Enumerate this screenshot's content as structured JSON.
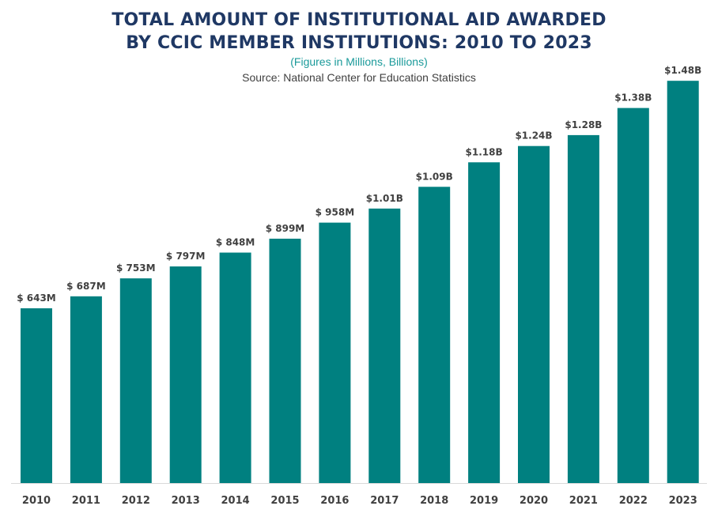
{
  "chart_data": {
    "type": "bar",
    "title_line1": "TOTAL AMOUNT OF INSTITUTIONAL AID AWARDED",
    "title_line2": "BY CCIC MEMBER INSTITUTIONS: 2010 TO 2023",
    "subtitle": "(Figures in Millions, Billions)",
    "source": "Source:  National Center for Education Statistics",
    "categories": [
      "2010",
      "2011",
      "2012",
      "2013",
      "2014",
      "2015",
      "2016",
      "2017",
      "2018",
      "2019",
      "2020",
      "2021",
      "2022",
      "2023"
    ],
    "values": [
      643,
      687,
      753,
      797,
      848,
      899,
      958,
      1010,
      1090,
      1180,
      1240,
      1280,
      1380,
      1480
    ],
    "data_labels": [
      "$ 643M",
      "$ 687M",
      "$ 753M",
      "$ 797M",
      "$ 848M",
      "$ 899M",
      "$ 958M",
      "$1.01B",
      "$1.09B",
      "$1.18B",
      "$1.24B",
      "$1.28B",
      "$1.38B",
      "$1.48B"
    ],
    "unit": "millions of dollars",
    "ylim": [
      0,
      1530
    ],
    "grid": false,
    "legend": "none",
    "bar_color": "#008080",
    "title_color": "#1f3864",
    "subtitle_color": "#1a9a9a"
  }
}
